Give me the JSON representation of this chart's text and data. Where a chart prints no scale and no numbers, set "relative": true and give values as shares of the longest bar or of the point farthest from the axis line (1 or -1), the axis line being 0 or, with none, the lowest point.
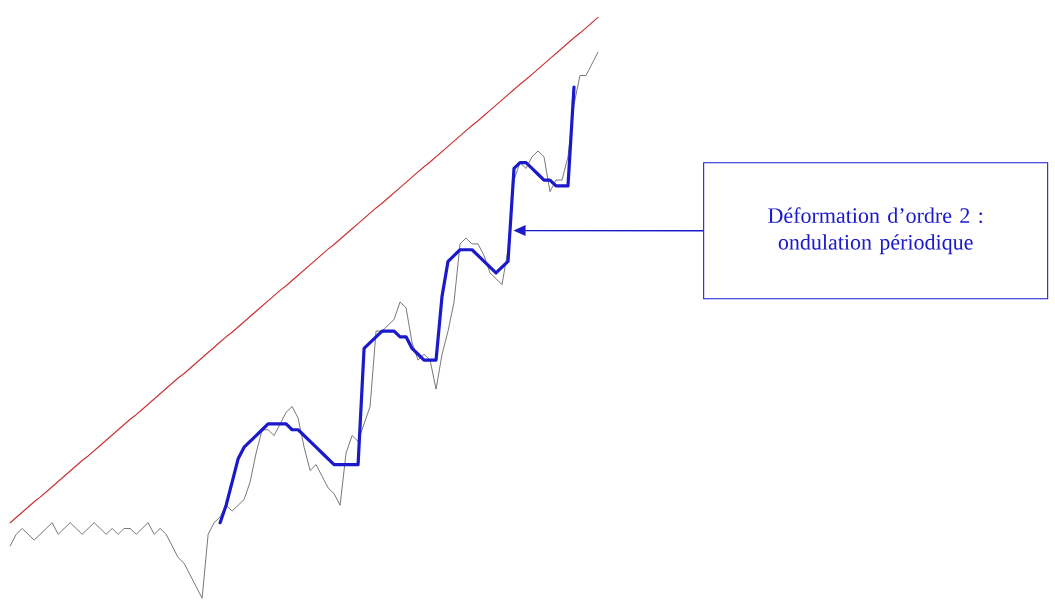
{
  "chart_data": {
    "type": "line",
    "relative": true,
    "annotations": [
      "Déformation d’ordre 2 : ondulation périodique"
    ],
    "categories": [
      null,
      null,
      null,
      null,
      null,
      null,
      null,
      null,
      null,
      null,
      null,
      null,
      null,
      null,
      null,
      null,
      null,
      null,
      null,
      null,
      null,
      null,
      null,
      null,
      null,
      null,
      null,
      null,
      null,
      null,
      null,
      null,
      null,
      null,
      null,
      null,
      null,
      null,
      null,
      null,
      null,
      null,
      null,
      null,
      null,
      null,
      null,
      null,
      null,
      null,
      null,
      null,
      null,
      null,
      null,
      null,
      null,
      null,
      null,
      null,
      null,
      null,
      null,
      null,
      null,
      null,
      null,
      null,
      null,
      null,
      null,
      null,
      null,
      null,
      null,
      null,
      null,
      null,
      null,
      null,
      null,
      null,
      null,
      null,
      null,
      null,
      null,
      null,
      null,
      null,
      null,
      null,
      null,
      null,
      null,
      null,
      null,
      null,
      null
    ],
    "series": [
      {
        "color": "#555555",
        "values": [
          0.09,
          0.11,
          0.12,
          0.11,
          0.1,
          0.11,
          0.12,
          0.13,
          0.11,
          0.12,
          0.13,
          0.12,
          0.11,
          0.12,
          0.13,
          0.12,
          0.11,
          0.12,
          0.11,
          0.12,
          0.12,
          0.11,
          0.12,
          0.13,
          0.11,
          0.12,
          0.11,
          0.09,
          0.07,
          0.06,
          0.04,
          0.02,
          0,
          0.11,
          0.13,
          0.14,
          0.16,
          0.15,
          0.16,
          0.17,
          0.2,
          0.25,
          0.29,
          0.29,
          0.28,
          0.3,
          0.32,
          0.33,
          0.31,
          0.26,
          0.22,
          0.23,
          0.21,
          0.19,
          0.18,
          0.16,
          0.25,
          0.28,
          0.27,
          0.3,
          0.33,
          0.46,
          0.46,
          0.47,
          0.48,
          0.51,
          0.5,
          0.44,
          0.41,
          0.42,
          0.41,
          0.36,
          0.42,
          0.46,
          0.51,
          0.61,
          0.62,
          0.61,
          0.61,
          0.59,
          0.56,
          0.55,
          0.54,
          0.6,
          0.72,
          0.75,
          0.74,
          0.76,
          0.77,
          0.76,
          0.7,
          0.72,
          0.72,
          0.76,
          0.85,
          0.9,
          0.9,
          0.92,
          0.94
        ]
      },
      {
        "color": "#cc3333",
        "values": [
          0.13,
          0.139,
          0.148,
          0.157,
          0.166,
          0.174,
          0.183,
          0.192,
          0.201,
          0.21,
          0.219,
          0.228,
          0.237,
          0.245,
          0.254,
          0.263,
          0.272,
          0.281,
          0.29,
          0.299,
          0.308,
          0.316,
          0.325,
          0.334,
          0.343,
          0.352,
          0.361,
          0.37,
          0.379,
          0.387,
          0.396,
          0.405,
          0.414,
          0.423,
          0.432,
          0.441,
          0.45,
          0.458,
          0.467,
          0.476,
          0.485,
          0.494,
          0.503,
          0.512,
          0.521,
          0.53,
          0.538,
          0.547,
          0.556,
          0.565,
          0.574,
          0.583,
          0.592,
          0.601,
          0.609,
          0.618,
          0.627,
          0.636,
          0.645,
          0.654,
          0.663,
          0.672,
          0.68,
          0.689,
          0.698,
          0.707,
          0.716,
          0.725,
          0.734,
          0.743,
          0.751,
          0.76,
          0.769,
          0.778,
          0.787,
          0.796,
          0.805,
          0.814,
          0.822,
          0.831,
          0.84,
          0.849,
          0.858,
          0.867,
          0.876,
          0.885,
          0.893,
          0.902,
          0.911,
          0.92,
          0.929,
          0.938,
          0.947,
          0.956,
          0.965,
          0.973,
          0.982,
          0.991,
          1.0
        ]
      },
      {
        "color": "#1a1acc",
        "values": [
          null,
          null,
          null,
          null,
          null,
          null,
          null,
          null,
          null,
          null,
          null,
          null,
          null,
          null,
          null,
          null,
          null,
          null,
          null,
          null,
          null,
          null,
          null,
          null,
          null,
          null,
          null,
          null,
          null,
          null,
          null,
          null,
          null,
          null,
          null,
          0.13,
          0.16,
          0.2,
          0.24,
          0.26,
          0.27,
          0.28,
          0.29,
          0.3,
          0.3,
          0.3,
          0.3,
          0.29,
          0.29,
          0.28,
          0.27,
          0.26,
          0.25,
          0.24,
          0.23,
          0.23,
          0.23,
          0.23,
          0.23,
          0.43,
          0.44,
          0.45,
          0.46,
          0.46,
          0.46,
          0.45,
          0.45,
          0.43,
          0.42,
          0.41,
          0.41,
          0.41,
          0.52,
          0.58,
          0.59,
          0.6,
          0.6,
          0.6,
          0.59,
          0.58,
          0.57,
          0.56,
          0.57,
          0.58,
          0.74,
          0.75,
          0.75,
          0.74,
          0.73,
          0.72,
          0.72,
          0.71,
          0.71,
          0.71,
          0.88,
          null,
          null,
          null,
          null
        ]
      }
    ]
  }
}
